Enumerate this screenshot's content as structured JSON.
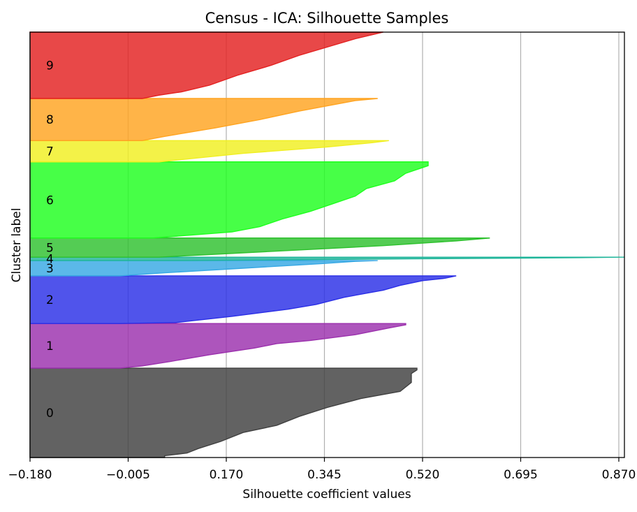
{
  "chart_data": {
    "type": "area",
    "title": "Census - ICA: Silhouette Samples",
    "xlabel": "Silhouette coefficient values",
    "ylabel": "Cluster label",
    "xlim": [
      -0.18,
      0.88
    ],
    "ylim": [
      0,
      100
    ],
    "xticks": [
      -0.18,
      -0.005,
      0.17,
      0.345,
      0.52,
      0.695,
      0.87
    ],
    "xtick_labels": [
      "−0.180",
      "−0.005",
      "0.170",
      "0.345",
      "0.520",
      "0.695",
      "0.870"
    ],
    "grid": "vertical",
    "reference_line_x": -0.18,
    "clusters": [
      {
        "label": "0",
        "color": "#404040",
        "y_start": 0,
        "y_end": 21,
        "profile": [
          [
            0,
            0.06
          ],
          [
            0.02,
            0.06
          ],
          [
            0.05,
            0.1
          ],
          [
            0.1,
            0.12
          ],
          [
            0.18,
            0.16
          ],
          [
            0.28,
            0.2
          ],
          [
            0.36,
            0.26
          ],
          [
            0.46,
            0.3
          ],
          [
            0.56,
            0.35
          ],
          [
            0.66,
            0.41
          ],
          [
            0.74,
            0.48
          ],
          [
            0.84,
            0.5
          ],
          [
            0.94,
            0.5
          ],
          [
            0.98,
            0.51
          ],
          [
            1,
            0.51
          ]
        ]
      },
      {
        "label": "1",
        "color": "#9b30ad",
        "y_start": 21,
        "y_end": 31.5,
        "profile": [
          [
            0,
            -0.02
          ],
          [
            0.05,
            0.02
          ],
          [
            0.15,
            0.07
          ],
          [
            0.3,
            0.14
          ],
          [
            0.45,
            0.22
          ],
          [
            0.55,
            0.26
          ],
          [
            0.62,
            0.32
          ],
          [
            0.75,
            0.4
          ],
          [
            0.9,
            0.46
          ],
          [
            0.97,
            0.49
          ],
          [
            1,
            0.49
          ]
        ]
      },
      {
        "label": "2",
        "color": "#2a2ee6",
        "y_start": 31.5,
        "y_end": 42.7,
        "profile": [
          [
            0,
            -0.02
          ],
          [
            0.02,
            0.08
          ],
          [
            0.15,
            0.18
          ],
          [
            0.3,
            0.28
          ],
          [
            0.4,
            0.33
          ],
          [
            0.55,
            0.38
          ],
          [
            0.7,
            0.45
          ],
          [
            0.8,
            0.48
          ],
          [
            0.9,
            0.52
          ],
          [
            0.95,
            0.56
          ],
          [
            1,
            0.58
          ]
        ]
      },
      {
        "label": "3",
        "color": "#37a8e4",
        "y_start": 42.7,
        "y_end": 46.3,
        "profile": [
          [
            0,
            -0.02
          ],
          [
            0.2,
            0.06
          ],
          [
            0.5,
            0.2
          ],
          [
            0.8,
            0.34
          ],
          [
            0.95,
            0.4
          ],
          [
            1,
            0.44
          ]
        ]
      },
      {
        "label": "4",
        "color": "#1fb59a",
        "y_start": 46.3,
        "y_end": 47.1,
        "profile": [
          [
            0,
            0.1
          ],
          [
            0.5,
            0.5
          ],
          [
            0.85,
            0.8
          ],
          [
            1,
            0.88
          ]
        ]
      },
      {
        "label": "5",
        "color": "#2ec12e",
        "y_start": 47.1,
        "y_end": 51.6,
        "profile": [
          [
            0,
            0.05
          ],
          [
            0.3,
            0.25
          ],
          [
            0.6,
            0.45
          ],
          [
            0.85,
            0.58
          ],
          [
            1,
            0.64
          ]
        ]
      },
      {
        "label": "6",
        "color": "#1eff1e",
        "y_start": 51.6,
        "y_end": 69.5,
        "profile": [
          [
            0,
            0.04
          ],
          [
            0.08,
            0.18
          ],
          [
            0.15,
            0.23
          ],
          [
            0.25,
            0.27
          ],
          [
            0.35,
            0.32
          ],
          [
            0.45,
            0.36
          ],
          [
            0.55,
            0.4
          ],
          [
            0.65,
            0.42
          ],
          [
            0.75,
            0.47
          ],
          [
            0.85,
            0.49
          ],
          [
            0.95,
            0.53
          ],
          [
            1,
            0.53
          ]
        ]
      },
      {
        "label": "7",
        "color": "#f0ef20",
        "y_start": 69.5,
        "y_end": 74.5,
        "profile": [
          [
            0,
            0.05
          ],
          [
            0.4,
            0.2
          ],
          [
            0.7,
            0.35
          ],
          [
            0.9,
            0.43
          ],
          [
            1,
            0.46
          ]
        ]
      },
      {
        "label": "8",
        "color": "#ffa420",
        "y_start": 74.5,
        "y_end": 84.4,
        "profile": [
          [
            0,
            0.02
          ],
          [
            0.1,
            0.06
          ],
          [
            0.3,
            0.15
          ],
          [
            0.5,
            0.23
          ],
          [
            0.7,
            0.3
          ],
          [
            0.85,
            0.36
          ],
          [
            0.95,
            0.4
          ],
          [
            1,
            0.44
          ]
        ]
      },
      {
        "label": "9",
        "color": "#e32020",
        "y_start": 84.4,
        "y_end": 100,
        "profile": [
          [
            0,
            0.02
          ],
          [
            0.05,
            0.05
          ],
          [
            0.1,
            0.09
          ],
          [
            0.2,
            0.14
          ],
          [
            0.35,
            0.19
          ],
          [
            0.5,
            0.25
          ],
          [
            0.65,
            0.3
          ],
          [
            0.8,
            0.36
          ],
          [
            0.9,
            0.4
          ],
          [
            1,
            0.45
          ]
        ]
      }
    ]
  }
}
